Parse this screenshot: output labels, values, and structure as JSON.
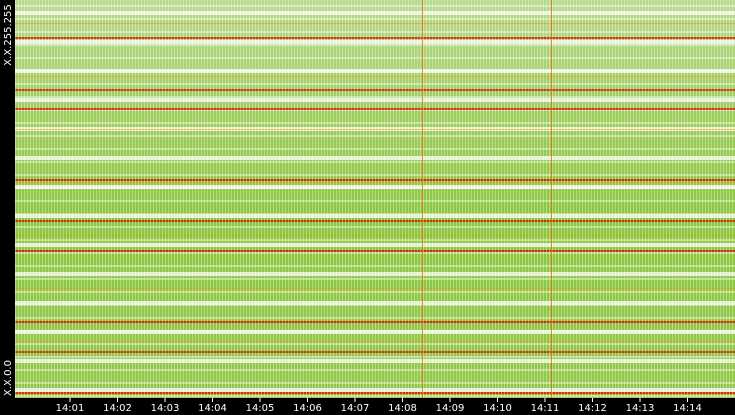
{
  "chart_data": {
    "type": "heatmap",
    "y_labels": [
      "X.X.255.255",
      "X.X.0.0"
    ],
    "categories": [
      "14:01",
      "14:02",
      "14:03",
      "14:04",
      "14:05",
      "14:06",
      "14:07",
      "14:08",
      "14:09",
      "14:10",
      "14:11",
      "14:12",
      "14:13",
      "14:14"
    ]
  }
}
